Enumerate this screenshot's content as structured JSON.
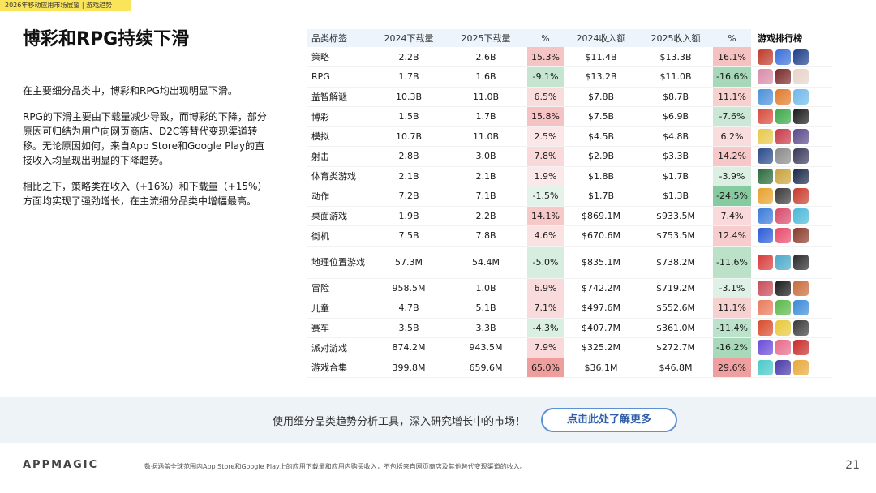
{
  "header": {
    "tag": "2026年移动应用市场展望 | 游戏趋势"
  },
  "title": "博彩和RPG持续下滑",
  "paragraphs": [
    "在主要细分品类中，博彩和RPG均出现明显下滑。",
    "RPG的下滑主要由下载量减少导致，而博彩的下降，部分原因可归结为用户向网页商店、D2C等替代变现渠道转移。无论原因如何，来自App Store和Google Play的直接收入均呈现出明显的下降趋势。",
    "相比之下，策略类在收入（+16%）和下载量（+15%）方面均实现了强劲增长，在主流细分品类中增幅最高。"
  ],
  "table": {
    "headers": [
      "品类标签",
      "2024下载量",
      "2025下载量",
      "%",
      "2024收入额",
      "2025收入额",
      "%",
      "游戏排行榜"
    ],
    "rows": [
      {
        "cat": "策略",
        "d24": "2.2B",
        "d25": "2.6B",
        "dp": "15.3%",
        "dpv": 15.3,
        "r24": "$11.4B",
        "r25": "$13.3B",
        "rp": "16.1%",
        "rpv": 16.1
      },
      {
        "cat": "RPG",
        "d24": "1.7B",
        "d25": "1.6B",
        "dp": "-9.1%",
        "dpv": -9.1,
        "r24": "$13.2B",
        "r25": "$11.0B",
        "rp": "-16.6%",
        "rpv": -16.6
      },
      {
        "cat": "益智解谜",
        "d24": "10.3B",
        "d25": "11.0B",
        "dp": "6.5%",
        "dpv": 6.5,
        "r24": "$7.8B",
        "r25": "$8.7B",
        "rp": "11.1%",
        "rpv": 11.1
      },
      {
        "cat": "博彩",
        "d24": "1.5B",
        "d25": "1.7B",
        "dp": "15.8%",
        "dpv": 15.8,
        "r24": "$7.5B",
        "r25": "$6.9B",
        "rp": "-7.6%",
        "rpv": -7.6
      },
      {
        "cat": "模拟",
        "d24": "10.7B",
        "d25": "11.0B",
        "dp": "2.5%",
        "dpv": 2.5,
        "r24": "$4.5B",
        "r25": "$4.8B",
        "rp": "6.2%",
        "rpv": 6.2
      },
      {
        "cat": "射击",
        "d24": "2.8B",
        "d25": "3.0B",
        "dp": "7.8%",
        "dpv": 7.8,
        "r24": "$2.9B",
        "r25": "$3.3B",
        "rp": "14.2%",
        "rpv": 14.2
      },
      {
        "cat": "体育类游戏",
        "d24": "2.1B",
        "d25": "2.1B",
        "dp": "1.9%",
        "dpv": 1.9,
        "r24": "$1.8B",
        "r25": "$1.7B",
        "rp": "-3.9%",
        "rpv": -3.9
      },
      {
        "cat": "动作",
        "d24": "7.2B",
        "d25": "7.1B",
        "dp": "-1.5%",
        "dpv": -1.5,
        "r24": "$1.7B",
        "r25": "$1.3B",
        "rp": "-24.5%",
        "rpv": -24.5
      },
      {
        "cat": "桌面游戏",
        "d24": "1.9B",
        "d25": "2.2B",
        "dp": "14.1%",
        "dpv": 14.1,
        "r24": "$869.1M",
        "r25": "$933.5M",
        "rp": "7.4%",
        "rpv": 7.4
      },
      {
        "cat": "街机",
        "d24": "7.5B",
        "d25": "7.8B",
        "dp": "4.6%",
        "dpv": 4.6,
        "r24": "$670.6M",
        "r25": "$753.5M",
        "rp": "12.4%",
        "rpv": 12.4
      },
      {
        "cat": "地理位置游戏",
        "d24": "57.3M",
        "d25": "54.4M",
        "dp": "-5.0%",
        "dpv": -5.0,
        "r24": "$835.1M",
        "r25": "$738.2M",
        "rp": "-11.6%",
        "rpv": -11.6,
        "tall": true
      },
      {
        "cat": "冒险",
        "d24": "958.5M",
        "d25": "1.0B",
        "dp": "6.9%",
        "dpv": 6.9,
        "r24": "$742.2M",
        "r25": "$719.2M",
        "rp": "-3.1%",
        "rpv": -3.1
      },
      {
        "cat": "儿童",
        "d24": "4.7B",
        "d25": "5.1B",
        "dp": "7.1%",
        "dpv": 7.1,
        "r24": "$497.6M",
        "r25": "$552.6M",
        "rp": "11.1%",
        "rpv": 11.1
      },
      {
        "cat": "赛车",
        "d24": "3.5B",
        "d25": "3.3B",
        "dp": "-4.3%",
        "dpv": -4.3,
        "r24": "$407.7M",
        "r25": "$361.0M",
        "rp": "-11.4%",
        "rpv": -11.4
      },
      {
        "cat": "派对游戏",
        "d24": "874.2M",
        "d25": "943.5M",
        "dp": "7.9%",
        "dpv": 7.9,
        "r24": "$325.2M",
        "r25": "$272.7M",
        "rp": "-16.2%",
        "rpv": -16.2
      },
      {
        "cat": "游戏合集",
        "d24": "399.8M",
        "d25": "659.6M",
        "dp": "65.0%",
        "dpv": 65.0,
        "r24": "$36.1M",
        "r25": "$46.8M",
        "rp": "29.6%",
        "rpv": 29.6
      }
    ],
    "icon_colors": [
      [
        "#c0392b",
        "#3a6fd8",
        "#1f3f8a"
      ],
      [
        "#d98ca8",
        "#7a2a2a",
        "#e6d3c8"
      ],
      [
        "#4a8fd8",
        "#e07a2a",
        "#6fb8e8"
      ],
      [
        "#d84a3a",
        "#3aa84a",
        "#1a1a1a"
      ],
      [
        "#e8c84a",
        "#c83a4a",
        "#5a4a8a"
      ],
      [
        "#2a4a8a",
        "#8a8a8a",
        "#3a3a5a"
      ],
      [
        "#2a6a3a",
        "#c8a23a",
        "#1a2a4a"
      ],
      [
        "#e8a02a",
        "#3a3a3a",
        "#c83a2a"
      ],
      [
        "#3a7ad8",
        "#d84a6a",
        "#4ab8d8"
      ],
      [
        "#2a5ad8",
        "#e84a6a",
        "#8a3a2a"
      ],
      [
        "#d83a3a",
        "#4aa8c8",
        "#2a2a2a"
      ],
      [
        "#c84a5a",
        "#1a1a1a",
        "#c86a3a"
      ],
      [
        "#e87a5a",
        "#5ab84a",
        "#3a8ad8"
      ],
      [
        "#d84a2a",
        "#e8c83a",
        "#3a3a3a"
      ],
      [
        "#6a4ad8",
        "#e86a8a",
        "#c82a2a"
      ],
      [
        "#4ac8c8",
        "#4a3aa8",
        "#e8a83a"
      ]
    ]
  },
  "cta": {
    "text": "使用细分品类趋势分析工具，深入研究增长中的市场！",
    "button": "点击此处了解更多"
  },
  "footer": {
    "logo": "APPMAGIC",
    "note": "数据涵盖全球范围内App Store和Google Play上的应用下载量和应用内购买收入，不包括来自网页商店及其他替代变现渠道的收入。",
    "page": "21"
  }
}
